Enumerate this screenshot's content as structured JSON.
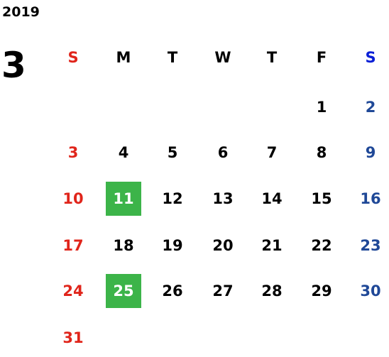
{
  "year": "2019",
  "month": "3",
  "weekdays": [
    "S",
    "M",
    "T",
    "W",
    "T",
    "F",
    "S"
  ],
  "weeks": [
    [
      null,
      null,
      null,
      null,
      null,
      1,
      2
    ],
    [
      3,
      4,
      5,
      6,
      7,
      8,
      9
    ],
    [
      10,
      11,
      12,
      13,
      14,
      15,
      16
    ],
    [
      17,
      18,
      19,
      20,
      21,
      22,
      23
    ],
    [
      24,
      25,
      26,
      27,
      28,
      29,
      30
    ],
    [
      31,
      null,
      null,
      null,
      null,
      null,
      null
    ]
  ],
  "highlighted": [
    11,
    25
  ],
  "colors": {
    "sunday": "#e0251b",
    "saturday_header": "#0a1fd6",
    "saturday": "#1f4897",
    "weekday": "#000000",
    "highlight": "#3cb449"
  }
}
